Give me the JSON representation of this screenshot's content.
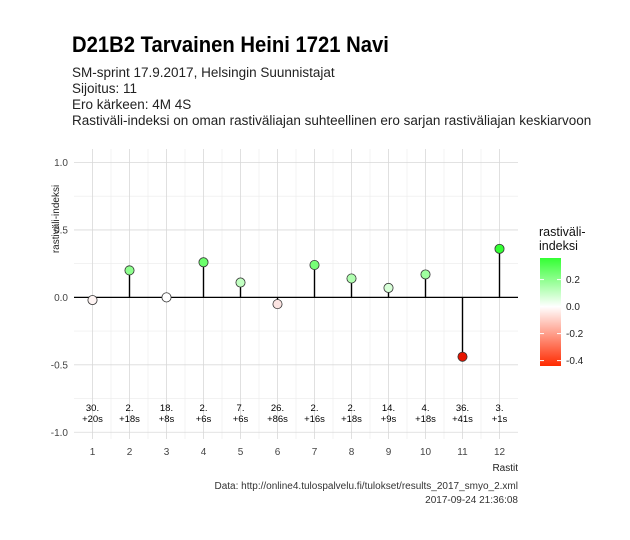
{
  "header": {
    "title": "D21B2 Tarvainen Heini 1721 Navi",
    "subtitle_lines": [
      "SM-sprint 17.9.2017, Helsingin Suunnistajat",
      "Sijoitus: 11",
      "Ero kärkeen: 4M 4S",
      "Rastiväli-indeksi on oman rastiväliajan suhteellinen ero sarjan rastiväliajan keskiarvoon"
    ]
  },
  "caption": {
    "source": "Data: http://online4.tulospalvelu.fi/tulokset/results_2017_smyo_2.xml",
    "timestamp": "2017-09-24 21:36:08"
  },
  "chart_data": {
    "type": "scatter",
    "style": "lollipop",
    "xlabel": "Rastit",
    "ylabel": "rastiväli-indeksi",
    "x": [
      1,
      2,
      3,
      4,
      5,
      6,
      7,
      8,
      9,
      10,
      11,
      12
    ],
    "x_ticks": [
      "1",
      "2",
      "3",
      "4",
      "5",
      "6",
      "7",
      "8",
      "9",
      "10",
      "11",
      "12"
    ],
    "values": [
      -0.02,
      0.2,
      0.0,
      0.26,
      0.11,
      -0.05,
      0.24,
      0.14,
      0.07,
      0.17,
      -0.44,
      0.36
    ],
    "ranks": [
      "30.",
      "2.",
      "18.",
      "2.",
      "7.",
      "26.",
      "2.",
      "2.",
      "14.",
      "4.",
      "36.",
      "3."
    ],
    "diffs": [
      "+20s",
      "+18s",
      "+8s",
      "+6s",
      "+6s",
      "+86s",
      "+16s",
      "+18s",
      "+9s",
      "+18s",
      "+41s",
      "+1s"
    ],
    "ylim": [
      -1.05,
      1.1
    ],
    "y_ticks": [
      -1.0,
      -0.5,
      0.0,
      0.5,
      1.0
    ],
    "y_tick_labels": [
      "-1.0",
      "-0.5",
      "0.0",
      "0.5",
      "1.0"
    ],
    "grid": true,
    "legend": {
      "title": [
        "rastiväli-",
        "indeksi"
      ],
      "placement": "right",
      "ticks": [
        0.2,
        0.0,
        -0.2,
        -0.4
      ],
      "tick_labels": [
        "0.2",
        "0.0",
        "-0.2",
        "-0.4"
      ],
      "range": [
        -0.44,
        0.36
      ]
    },
    "colors": {
      "low": "#ff2a00",
      "mid": "#ffffff",
      "high": "#33ff33"
    }
  }
}
